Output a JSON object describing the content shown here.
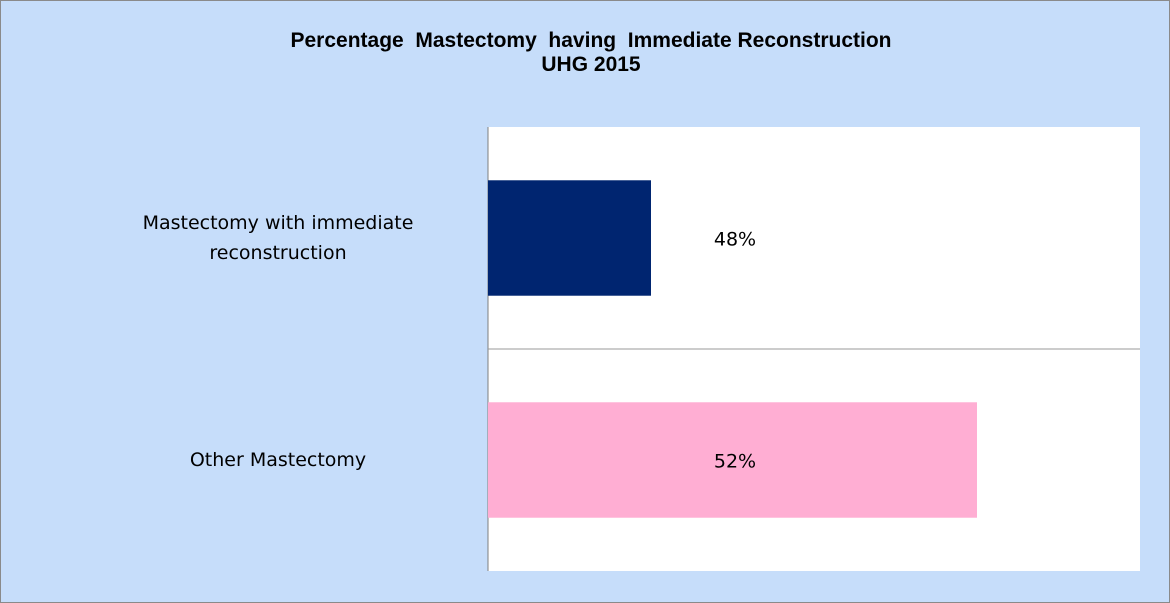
{
  "chart_data": {
    "type": "hbar",
    "title": "Percentage  Mastectomy  having  Immediate Reconstruction",
    "subtitle": "UHG 2015",
    "categories": [
      "Mastectomy with immediate reconstruction",
      "Other Mastectomy"
    ],
    "values": [
      48,
      52
    ],
    "value_labels": [
      "48%",
      "52%"
    ],
    "colors": [
      "#002570",
      "#ffaed3"
    ],
    "xlim": [
      46,
      54
    ]
  }
}
